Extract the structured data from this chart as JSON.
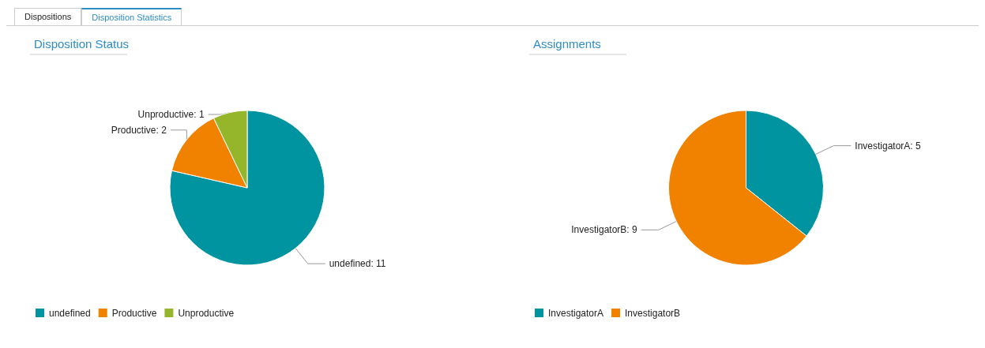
{
  "chart_data": [
    {
      "type": "pie",
      "title": "Disposition Status",
      "annotations": [
        "Dispositions",
        "Disposition Statistics"
      ],
      "categories": [
        "undefined",
        "Productive",
        "Unproductive"
      ],
      "values": [
        11,
        2,
        1
      ],
      "colors": [
        "#0093a0",
        "#f18200",
        "#95b62a"
      ],
      "value_labels": [
        "undefined: 11",
        "Productive: 2",
        "Unproductive: 1"
      ],
      "legend": "bottom left"
    },
    {
      "type": "pie",
      "title": "Assignments",
      "categories": [
        "InvestigatorA",
        "InvestigatorB"
      ],
      "values": [
        5,
        9
      ],
      "colors": [
        "#0093a0",
        "#f18200"
      ],
      "value_labels": [
        "InvestigatorA: 5",
        "InvestigatorB: 9"
      ],
      "legend": "bottom left"
    }
  ]
}
